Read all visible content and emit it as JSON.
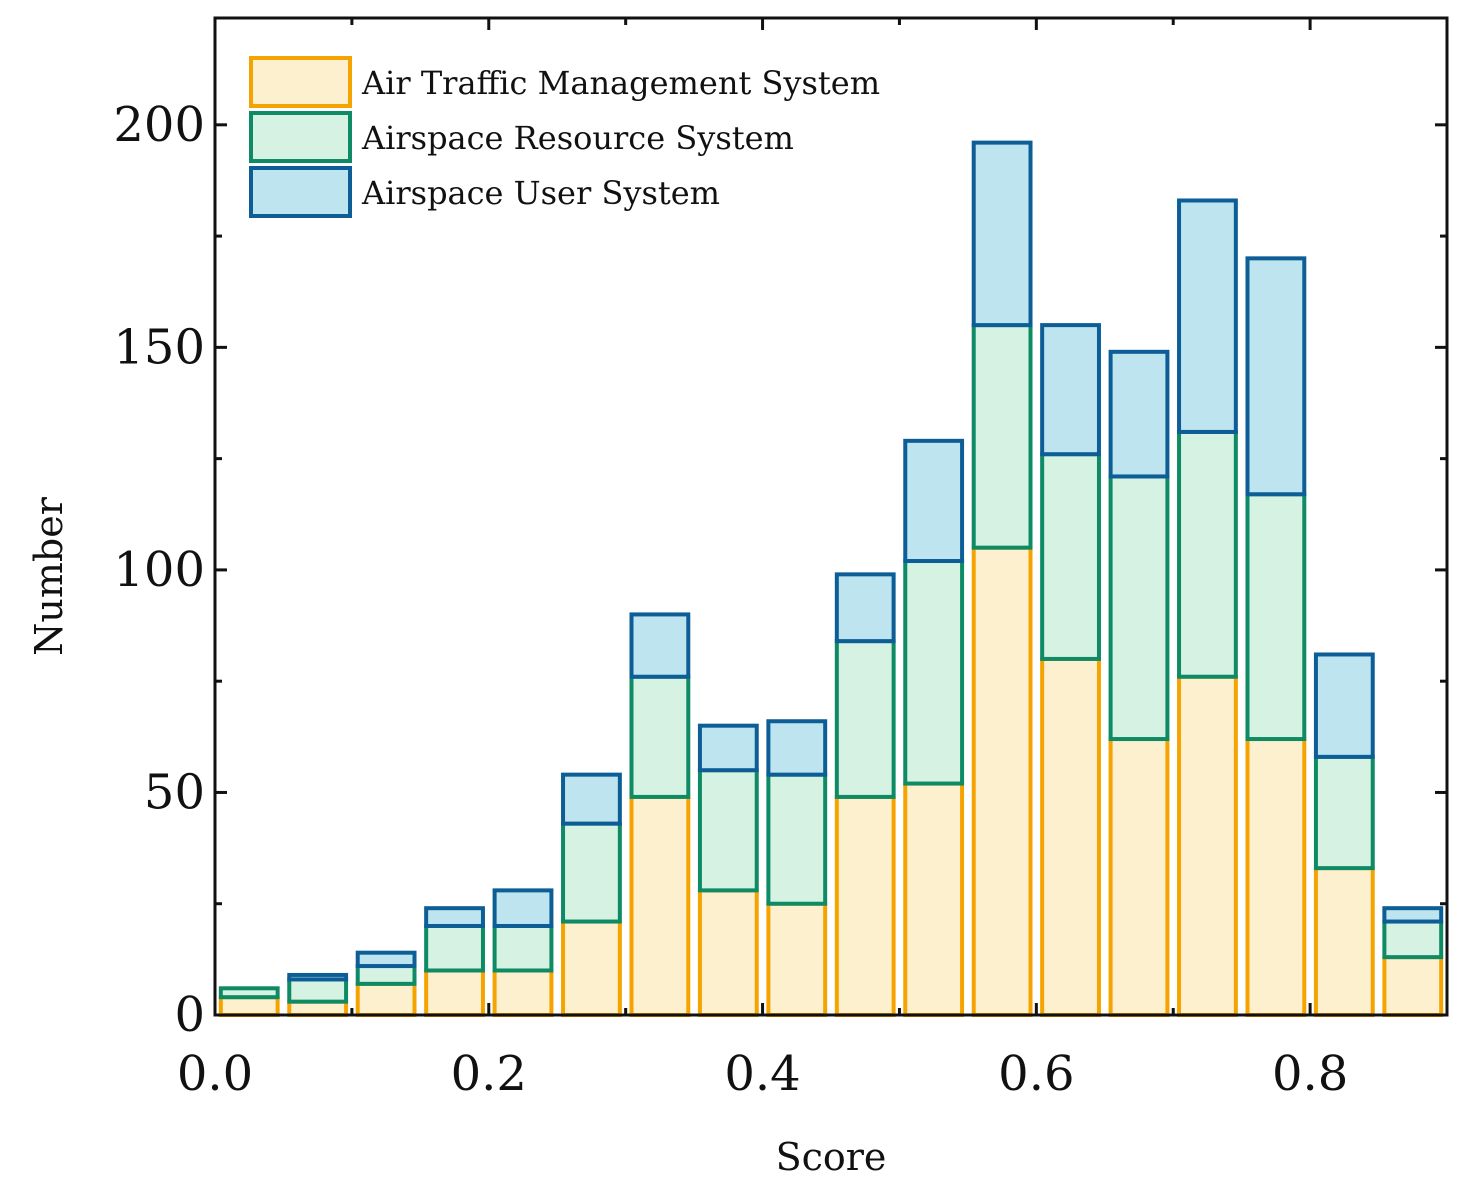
{
  "chart_data": {
    "type": "bar",
    "stacked": true,
    "title": "",
    "xlabel": "Score",
    "ylabel": "Number",
    "xlim": [
      0.0,
      0.9
    ],
    "ylim": [
      0,
      224
    ],
    "x_ticks": [
      "0.0",
      "0.2",
      "0.4",
      "0.6",
      "0.8"
    ],
    "x_tick_values": [
      0.0,
      0.2,
      0.4,
      0.6,
      0.8
    ],
    "y_ticks": [
      "0",
      "50",
      "100",
      "150",
      "200"
    ],
    "y_tick_values": [
      0,
      50,
      100,
      150,
      200
    ],
    "bin_width": 0.05,
    "bin_centers": [
      0.025,
      0.075,
      0.125,
      0.175,
      0.225,
      0.275,
      0.325,
      0.375,
      0.425,
      0.475,
      0.525,
      0.575,
      0.625,
      0.675,
      0.725,
      0.775,
      0.825,
      0.875
    ],
    "legend_position": "top-left",
    "series": [
      {
        "name": "Air Traffic Management System",
        "fill": "#fdf0cf",
        "stroke": "#f5a300",
        "values": [
          4,
          3,
          7,
          10,
          10,
          21,
          49,
          28,
          25,
          49,
          52,
          105,
          80,
          62,
          76,
          62,
          33,
          13
        ]
      },
      {
        "name": "Airspace Resource System",
        "fill": "#d5f2e2",
        "stroke": "#0e8a65",
        "values": [
          2,
          5,
          4,
          10,
          10,
          22,
          27,
          27,
          29,
          35,
          50,
          50,
          46,
          59,
          55,
          55,
          25,
          8
        ]
      },
      {
        "name": "Airspace User System",
        "fill": "#bde4ef",
        "stroke": "#0d5e96",
        "values": [
          0,
          1,
          3,
          4,
          8,
          11,
          14,
          10,
          12,
          15,
          27,
          41,
          29,
          28,
          52,
          53,
          23,
          3
        ]
      }
    ]
  }
}
